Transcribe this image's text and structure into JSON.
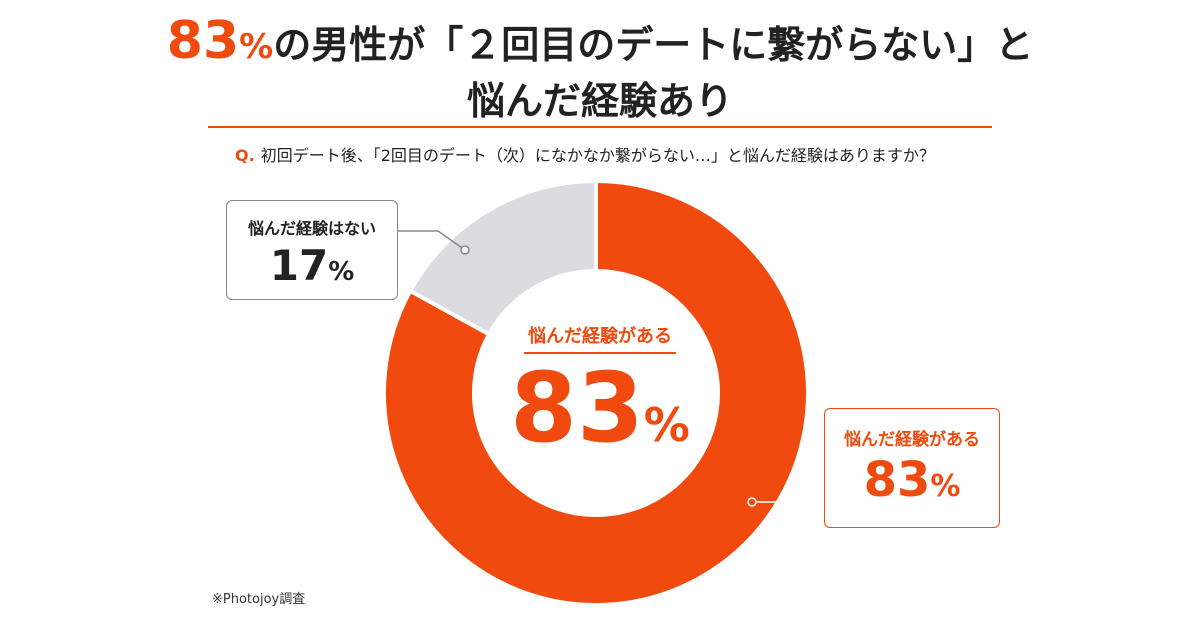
{
  "headline": {
    "percent_number": "83",
    "percent_sign": "%",
    "line1_rest": "の男性が「２回目のデートに繋がらない」と",
    "line2": "悩んだ経験あり"
  },
  "question": {
    "label": "Q.",
    "text": "初回デート後、「2回目のデート（次）になかなか繋がらない…」と悩んだ経験はありますか？"
  },
  "chart_data": {
    "type": "pie",
    "donut": true,
    "slices": [
      {
        "label": "悩んだ経験がある",
        "value": 83,
        "value_text": "83",
        "unit": "%",
        "color": "#f04a0f"
      },
      {
        "label": "悩んだ経験はない",
        "value": 17,
        "value_text": "17",
        "unit": "%",
        "color": "#dcdce0"
      }
    ],
    "center": {
      "label": "悩んだ経験がある",
      "value_text": "83",
      "unit": "%"
    }
  },
  "source": "※Photojoy調査",
  "colors": {
    "accent": "#f04a0f",
    "gray": "#dcdce0",
    "text": "#222222"
  }
}
